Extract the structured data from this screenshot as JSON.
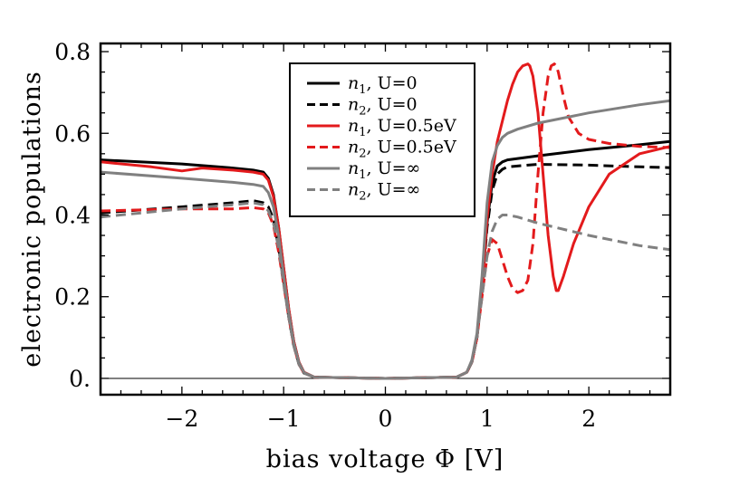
{
  "chart_data": {
    "type": "line",
    "title": "",
    "xlabel": "bias voltage Φ [V]",
    "ylabel": "electronic populations",
    "xlim": [
      -2.8,
      2.8
    ],
    "ylim": [
      -0.04,
      0.82
    ],
    "xticks": [
      -2,
      -1,
      0,
      1,
      2
    ],
    "xtick_labels": [
      "−2",
      "−1",
      "0",
      "1",
      "2"
    ],
    "yticks": [
      0.0,
      0.2,
      0.4,
      0.6,
      0.8
    ],
    "ytick_labels": [
      "0.",
      "0.2",
      "0.4",
      "0.6",
      "0.8"
    ],
    "grid": false,
    "legend_position": "top-center",
    "series": [
      {
        "name": "n1, U=0",
        "label_var": "n",
        "label_sub": "1",
        "label_rest": ", U=0",
        "color": "#000000",
        "dash": "solid",
        "x": [
          -2.8,
          -2.0,
          -1.5,
          -1.3,
          -1.2,
          -1.15,
          -1.1,
          -1.05,
          -1.0,
          -0.95,
          -0.9,
          -0.85,
          -0.8,
          -0.7,
          0.0,
          0.7,
          0.8,
          0.85,
          0.9,
          0.95,
          1.0,
          1.05,
          1.1,
          1.15,
          1.2,
          1.5,
          2.0,
          2.5,
          2.8
        ],
        "y": [
          0.535,
          0.525,
          0.515,
          0.51,
          0.505,
          0.49,
          0.45,
          0.37,
          0.27,
          0.17,
          0.09,
          0.04,
          0.015,
          0.003,
          0.0,
          0.003,
          0.015,
          0.04,
          0.1,
          0.22,
          0.38,
          0.48,
          0.52,
          0.53,
          0.535,
          0.545,
          0.56,
          0.572,
          0.58
        ]
      },
      {
        "name": "n2, U=0",
        "label_var": "n",
        "label_sub": "2",
        "label_rest": ", U=0",
        "color": "#000000",
        "dash": "dashed",
        "x": [
          -2.8,
          -2.0,
          -1.5,
          -1.3,
          -1.2,
          -1.15,
          -1.1,
          -1.05,
          -1.0,
          -0.95,
          -0.9,
          -0.85,
          -0.8,
          -0.7,
          0.0,
          0.7,
          0.8,
          0.85,
          0.9,
          0.95,
          1.0,
          1.05,
          1.1,
          1.15,
          1.2,
          1.5,
          2.0,
          2.5,
          2.8
        ],
        "y": [
          0.405,
          0.42,
          0.43,
          0.435,
          0.43,
          0.42,
          0.39,
          0.32,
          0.24,
          0.15,
          0.08,
          0.035,
          0.013,
          0.003,
          0.0,
          0.003,
          0.015,
          0.04,
          0.1,
          0.22,
          0.37,
          0.46,
          0.5,
          0.512,
          0.518,
          0.524,
          0.522,
          0.518,
          0.516
        ]
      },
      {
        "name": "n1, U=0.5eV",
        "label_var": "n",
        "label_sub": "1",
        "label_rest": ", U=0.5eV",
        "color": "#e31a1c",
        "dash": "solid",
        "x": [
          -2.8,
          -2.3,
          -2.0,
          -1.8,
          -1.5,
          -1.3,
          -1.2,
          -1.15,
          -1.1,
          -1.05,
          -1.0,
          -0.95,
          -0.9,
          -0.85,
          -0.8,
          -0.7,
          0.0,
          0.7,
          0.8,
          0.85,
          0.9,
          0.95,
          1.0,
          1.05,
          1.1,
          1.15,
          1.2,
          1.25,
          1.3,
          1.35,
          1.4,
          1.42,
          1.45,
          1.5,
          1.55,
          1.6,
          1.65,
          1.68,
          1.7,
          1.75,
          1.85,
          2.0,
          2.2,
          2.5,
          2.8
        ],
        "y": [
          0.53,
          0.518,
          0.508,
          0.515,
          0.51,
          0.505,
          0.5,
          0.485,
          0.445,
          0.37,
          0.27,
          0.17,
          0.09,
          0.04,
          0.015,
          0.003,
          0.0,
          0.003,
          0.015,
          0.04,
          0.1,
          0.22,
          0.39,
          0.5,
          0.58,
          0.63,
          0.68,
          0.72,
          0.75,
          0.765,
          0.77,
          0.765,
          0.74,
          0.65,
          0.5,
          0.35,
          0.25,
          0.215,
          0.215,
          0.25,
          0.33,
          0.42,
          0.5,
          0.55,
          0.568
        ]
      },
      {
        "name": "n2, U=0.5eV",
        "label_var": "n",
        "label_sub": "2",
        "label_rest": ", U=0.5eV",
        "color": "#e31a1c",
        "dash": "dashed",
        "x": [
          -2.8,
          -2.0,
          -1.5,
          -1.3,
          -1.2,
          -1.15,
          -1.1,
          -1.05,
          -1.0,
          -0.95,
          -0.9,
          -0.85,
          -0.8,
          -0.7,
          0.0,
          0.7,
          0.8,
          0.85,
          0.9,
          0.95,
          1.0,
          1.05,
          1.1,
          1.15,
          1.2,
          1.25,
          1.3,
          1.35,
          1.4,
          1.45,
          1.5,
          1.55,
          1.6,
          1.63,
          1.66,
          1.68,
          1.7,
          1.75,
          1.8,
          1.9,
          2.0,
          2.2,
          2.5,
          2.8
        ],
        "y": [
          0.41,
          0.415,
          0.415,
          0.418,
          0.415,
          0.405,
          0.375,
          0.31,
          0.23,
          0.15,
          0.08,
          0.035,
          0.013,
          0.003,
          0.0,
          0.003,
          0.015,
          0.04,
          0.1,
          0.2,
          0.3,
          0.34,
          0.33,
          0.29,
          0.25,
          0.22,
          0.21,
          0.215,
          0.24,
          0.33,
          0.5,
          0.65,
          0.74,
          0.765,
          0.77,
          0.765,
          0.75,
          0.69,
          0.64,
          0.6,
          0.585,
          0.575,
          0.568,
          0.565
        ]
      },
      {
        "name": "n1, U=∞",
        "label_var": "n",
        "label_sub": "1",
        "label_rest": ", U=∞",
        "color": "#808080",
        "dash": "solid",
        "x": [
          -2.8,
          -2.0,
          -1.5,
          -1.3,
          -1.2,
          -1.15,
          -1.1,
          -1.05,
          -1.0,
          -0.95,
          -0.9,
          -0.85,
          -0.8,
          -0.7,
          0.0,
          0.7,
          0.8,
          0.85,
          0.9,
          0.95,
          1.0,
          1.05,
          1.1,
          1.15,
          1.2,
          1.3,
          1.5,
          2.0,
          2.5,
          2.8
        ],
        "y": [
          0.505,
          0.49,
          0.48,
          0.475,
          0.47,
          0.455,
          0.42,
          0.35,
          0.25,
          0.16,
          0.085,
          0.038,
          0.014,
          0.003,
          0.0,
          0.003,
          0.015,
          0.045,
          0.11,
          0.25,
          0.43,
          0.53,
          0.57,
          0.59,
          0.6,
          0.61,
          0.625,
          0.65,
          0.67,
          0.68
        ]
      },
      {
        "name": "n2, U=∞",
        "label_var": "n",
        "label_sub": "2",
        "label_rest": ", U=∞",
        "color": "#808080",
        "dash": "dashed",
        "x": [
          -2.8,
          -2.0,
          -1.5,
          -1.3,
          -1.2,
          -1.15,
          -1.1,
          -1.05,
          -1.0,
          -0.95,
          -0.9,
          -0.85,
          -0.8,
          -0.7,
          0.0,
          0.7,
          0.8,
          0.85,
          0.9,
          0.95,
          1.0,
          1.05,
          1.1,
          1.15,
          1.2,
          1.3,
          1.5,
          2.0,
          2.5,
          2.8
        ],
        "y": [
          0.395,
          0.415,
          0.425,
          0.43,
          0.425,
          0.41,
          0.38,
          0.32,
          0.23,
          0.15,
          0.08,
          0.035,
          0.013,
          0.003,
          0.0,
          0.003,
          0.015,
          0.04,
          0.1,
          0.2,
          0.3,
          0.36,
          0.39,
          0.4,
          0.4,
          0.395,
          0.38,
          0.35,
          0.325,
          0.315
        ]
      }
    ]
  }
}
